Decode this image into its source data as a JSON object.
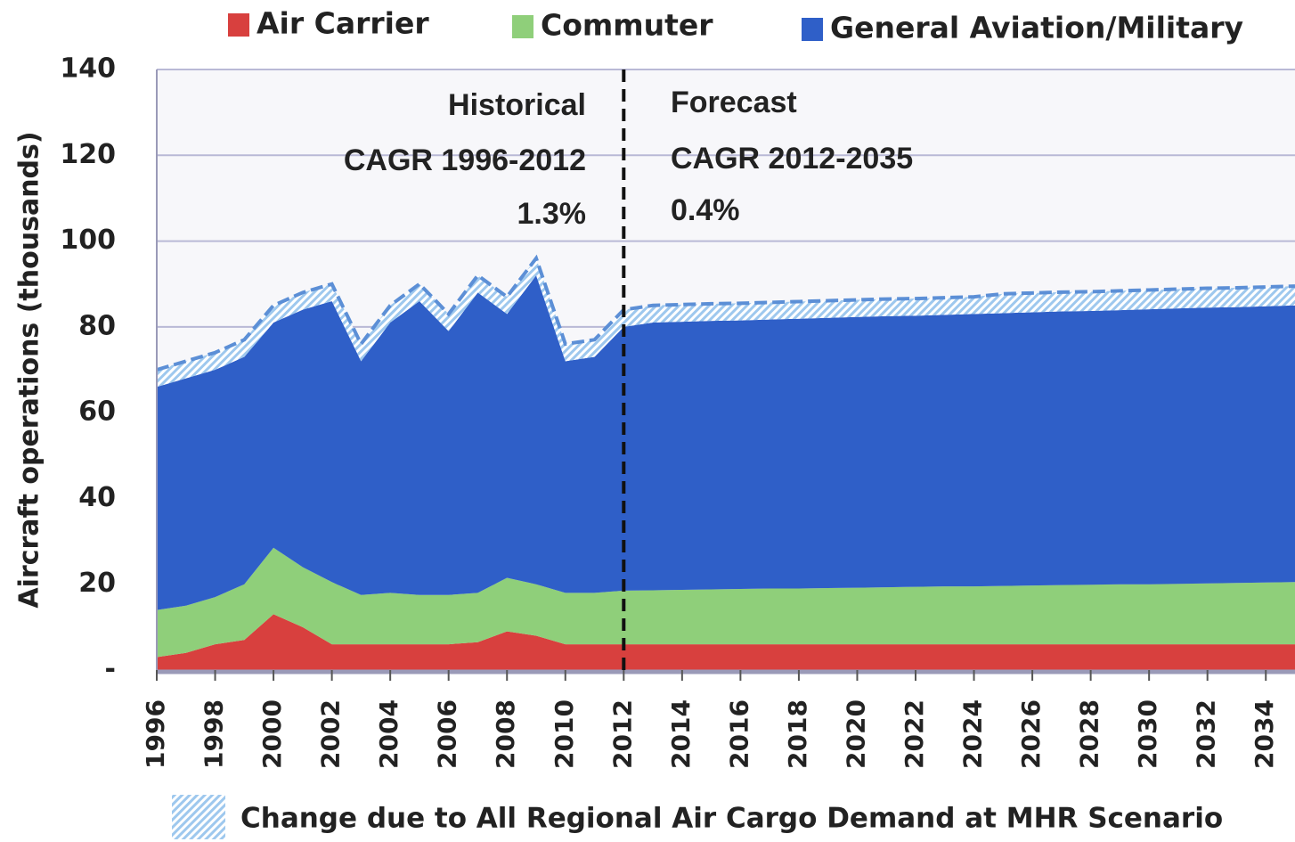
{
  "chart_data": {
    "type": "stacked_area",
    "legend_position": "top",
    "y_label": "Aircraft operations (thousands)",
    "x": [
      1996,
      1997,
      1998,
      1999,
      2000,
      2001,
      2002,
      2003,
      2004,
      2005,
      2006,
      2007,
      2008,
      2009,
      2010,
      2011,
      2012,
      2013,
      2014,
      2015,
      2016,
      2017,
      2018,
      2019,
      2020,
      2021,
      2022,
      2023,
      2024,
      2025,
      2026,
      2027,
      2028,
      2029,
      2030,
      2031,
      2032,
      2033,
      2034,
      2035
    ],
    "series": [
      {
        "name": "Air Carrier",
        "color": "#d8403e",
        "values": [
          3,
          4,
          6,
          7,
          13,
          10,
          6,
          6,
          6,
          6,
          6,
          6.5,
          9,
          8,
          6,
          6,
          6,
          6,
          6,
          6,
          6,
          6,
          6,
          6,
          6,
          6,
          6,
          6,
          6,
          6,
          6,
          6,
          6,
          6,
          6,
          6,
          6,
          6,
          6,
          6
        ]
      },
      {
        "name": "Commuter",
        "color": "#8fcf7a",
        "values": [
          11,
          11,
          11,
          13,
          15.5,
          14,
          14.5,
          11.5,
          12,
          11.5,
          11.5,
          11.5,
          12.5,
          12,
          12,
          12,
          12.5,
          12.6,
          12.7,
          12.8,
          12.9,
          13,
          13,
          13.1,
          13.2,
          13.3,
          13.4,
          13.5,
          13.5,
          13.6,
          13.7,
          13.8,
          13.9,
          14,
          14,
          14.1,
          14.2,
          14.3,
          14.4,
          14.5
        ]
      },
      {
        "name": "General Aviation/Military",
        "color": "#2f5fc8",
        "values": [
          52,
          53,
          53,
          53,
          52.5,
          60,
          65.5,
          54.5,
          63,
          68.5,
          61.5,
          70,
          61.5,
          72,
          54,
          55,
          61.5,
          62.4,
          62.5,
          62.6,
          62.6,
          62.7,
          62.9,
          63,
          63.1,
          63.2,
          63.2,
          63.3,
          63.5,
          63.6,
          63.7,
          63.8,
          63.8,
          63.9,
          64.1,
          64.2,
          64.3,
          64.3,
          64.4,
          64.5
        ]
      },
      {
        "name": "Change due to All Regional Air Cargo Demand at MHR Scenario",
        "color": "#9ec8ee",
        "hatched": true,
        "values": [
          4,
          4,
          4,
          4,
          4,
          4,
          4,
          4,
          4,
          4,
          4,
          4,
          4,
          4,
          4,
          4,
          4,
          4,
          4,
          4,
          4,
          4,
          4,
          4,
          4,
          4,
          4,
          4,
          4,
          4.5,
          4.5,
          4.5,
          4.5,
          4.5,
          4.5,
          4.5,
          4.5,
          4.5,
          4.5,
          4.5
        ]
      }
    ],
    "xlim": [
      1996,
      2035
    ],
    "xticks": [
      1996,
      1998,
      2000,
      2002,
      2004,
      2006,
      2008,
      2010,
      2012,
      2014,
      2016,
      2018,
      2020,
      2022,
      2024,
      2026,
      2028,
      2030,
      2032,
      2034
    ],
    "ylim": [
      0,
      140
    ],
    "yticks": [
      {
        "value": 0,
        "label": "-"
      },
      20,
      40,
      60,
      80,
      100,
      120,
      140
    ],
    "grid": true,
    "divider_x": 2012,
    "annotations": [
      "Historical",
      "CAGR 1996-2012",
      "1.3%",
      "Forecast",
      "CAGR 2012-2035",
      "0.4%"
    ]
  }
}
